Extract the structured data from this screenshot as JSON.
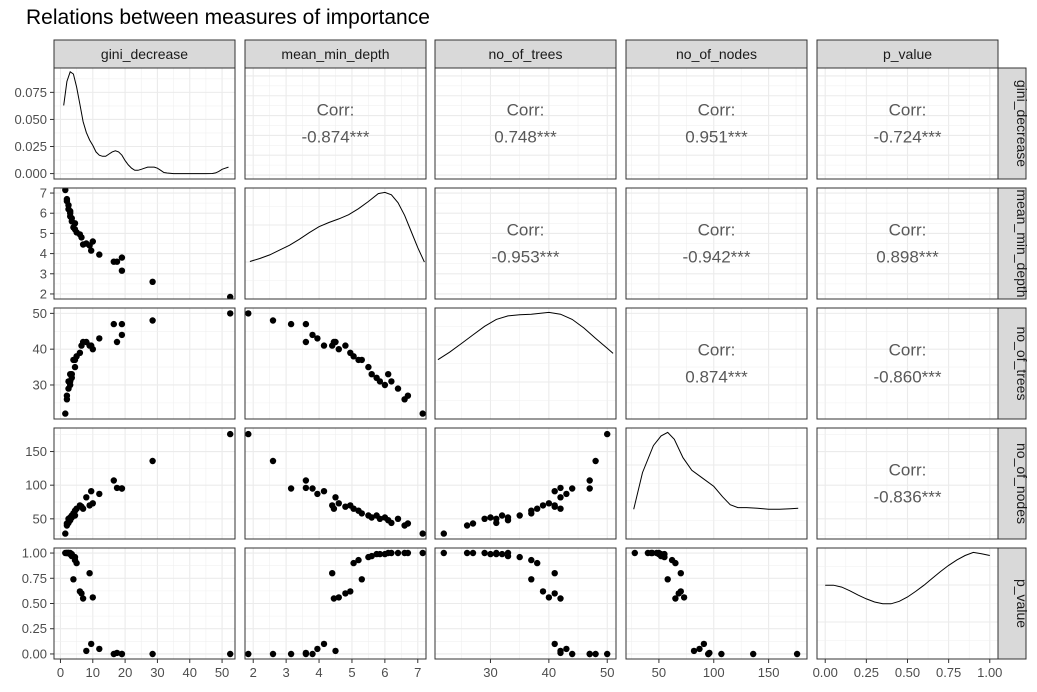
{
  "title": "Relations between measures of importance",
  "chart_data": {
    "type": "scatter",
    "title": "Relations between measures of importance",
    "variables": [
      "gini_decrease",
      "mean_min_depth",
      "no_of_trees",
      "no_of_nodes",
      "p_value"
    ],
    "axes": {
      "gini_decrease": {
        "range": [
          -2,
          54
        ],
        "ticks": [
          0,
          10,
          20,
          30,
          40,
          50
        ]
      },
      "mean_min_depth": {
        "range": [
          1.75,
          7.25
        ],
        "ticks": [
          2,
          3,
          4,
          5,
          6,
          7
        ]
      },
      "no_of_trees": {
        "range": [
          20.5,
          51.5
        ],
        "ticks": [
          30,
          40,
          50
        ]
      },
      "no_of_nodes": {
        "range": [
          20,
          185
        ],
        "ticks": [
          50,
          100,
          150
        ]
      },
      "p_value": {
        "range": [
          -0.05,
          1.05
        ],
        "ticks": [
          0.0,
          0.25,
          0.5,
          0.75,
          1.0
        ],
        "tick_labels": [
          "0.00",
          "0.25",
          "0.50",
          "0.75",
          "1.00"
        ]
      }
    },
    "density_axis": {
      "range": [
        -0.005,
        0.0975
      ],
      "ticks": [
        0.0,
        0.025,
        0.05,
        0.075
      ],
      "tick_labels": [
        "0.000",
        "0.025",
        "0.050",
        "0.075"
      ]
    },
    "density_curves": {
      "gini_decrease": [
        [
          1,
          0.063
        ],
        [
          2,
          0.085
        ],
        [
          3,
          0.094
        ],
        [
          4,
          0.092
        ],
        [
          5,
          0.08
        ],
        [
          6,
          0.064
        ],
        [
          7,
          0.048
        ],
        [
          8,
          0.038
        ],
        [
          9,
          0.031
        ],
        [
          10,
          0.026
        ],
        [
          11,
          0.02
        ],
        [
          12,
          0.017
        ],
        [
          13,
          0.016
        ],
        [
          14,
          0.016
        ],
        [
          15,
          0.018
        ],
        [
          16,
          0.02
        ],
        [
          17,
          0.021
        ],
        [
          18,
          0.02
        ],
        [
          19,
          0.017
        ],
        [
          20,
          0.012
        ],
        [
          21,
          0.008
        ],
        [
          22,
          0.005
        ],
        [
          23,
          0.003
        ],
        [
          24,
          0.003
        ],
        [
          25,
          0.004
        ],
        [
          26,
          0.005
        ],
        [
          27,
          0.006
        ],
        [
          28,
          0.006
        ],
        [
          29,
          0.006
        ],
        [
          30,
          0.005
        ],
        [
          31,
          0.003
        ],
        [
          32,
          0.001
        ],
        [
          33,
          0.0005
        ],
        [
          35,
          0.0
        ],
        [
          40,
          0.0
        ],
        [
          45,
          0.0
        ],
        [
          47,
          0.0001
        ],
        [
          48,
          0.0006
        ],
        [
          49,
          0.002
        ],
        [
          50,
          0.004
        ],
        [
          51,
          0.005
        ],
        [
          52,
          0.006
        ]
      ],
      "mean_min_depth": [
        [
          1.9,
          0.55
        ],
        [
          2.2,
          0.6
        ],
        [
          2.5,
          0.66
        ],
        [
          2.8,
          0.74
        ],
        [
          3.1,
          0.82
        ],
        [
          3.4,
          0.92
        ],
        [
          3.7,
          1.03
        ],
        [
          4.0,
          1.13
        ],
        [
          4.3,
          1.2
        ],
        [
          4.6,
          1.26
        ],
        [
          4.9,
          1.33
        ],
        [
          5.2,
          1.43
        ],
        [
          5.5,
          1.55
        ],
        [
          5.8,
          1.68
        ],
        [
          6.0,
          1.7
        ],
        [
          6.2,
          1.66
        ],
        [
          6.4,
          1.53
        ],
        [
          6.6,
          1.32
        ],
        [
          6.8,
          1.05
        ],
        [
          7.0,
          0.78
        ],
        [
          7.2,
          0.54
        ]
      ],
      "no_of_trees": [
        [
          21,
          0.95
        ],
        [
          23,
          1.08
        ],
        [
          25,
          1.23
        ],
        [
          27,
          1.38
        ],
        [
          29,
          1.53
        ],
        [
          31,
          1.65
        ],
        [
          33,
          1.71
        ],
        [
          35,
          1.73
        ],
        [
          37,
          1.74
        ],
        [
          39,
          1.76
        ],
        [
          40,
          1.77
        ],
        [
          42,
          1.74
        ],
        [
          44,
          1.65
        ],
        [
          46,
          1.5
        ],
        [
          48,
          1.32
        ],
        [
          50,
          1.15
        ],
        [
          51,
          1.06
        ]
      ],
      "no_of_nodes": [
        [
          27,
          0.44
        ],
        [
          35,
          1.08
        ],
        [
          45,
          1.55
        ],
        [
          52,
          1.72
        ],
        [
          58,
          1.78
        ],
        [
          64,
          1.66
        ],
        [
          72,
          1.34
        ],
        [
          80,
          1.12
        ],
        [
          90,
          0.98
        ],
        [
          100,
          0.84
        ],
        [
          108,
          0.66
        ],
        [
          115,
          0.52
        ],
        [
          122,
          0.47
        ],
        [
          130,
          0.47
        ],
        [
          140,
          0.46
        ],
        [
          150,
          0.44
        ],
        [
          160,
          0.44
        ],
        [
          170,
          0.45
        ],
        [
          177,
          0.46
        ]
      ],
      "p_value": [
        [
          0.0,
          1.12
        ],
        [
          0.05,
          1.12
        ],
        [
          0.1,
          1.09
        ],
        [
          0.15,
          1.03
        ],
        [
          0.2,
          0.96
        ],
        [
          0.25,
          0.9
        ],
        [
          0.3,
          0.85
        ],
        [
          0.35,
          0.82
        ],
        [
          0.4,
          0.82
        ],
        [
          0.45,
          0.86
        ],
        [
          0.5,
          0.93
        ],
        [
          0.55,
          1.02
        ],
        [
          0.6,
          1.12
        ],
        [
          0.65,
          1.23
        ],
        [
          0.7,
          1.34
        ],
        [
          0.75,
          1.44
        ],
        [
          0.8,
          1.53
        ],
        [
          0.85,
          1.6
        ],
        [
          0.9,
          1.65
        ],
        [
          0.95,
          1.63
        ],
        [
          1.0,
          1.6
        ]
      ]
    },
    "correlations": [
      {
        "x": "mean_min_depth",
        "y": "gini_decrease",
        "label": "Corr:",
        "value": "-0.874***"
      },
      {
        "x": "no_of_trees",
        "y": "gini_decrease",
        "label": "Corr:",
        "value": "0.748***"
      },
      {
        "x": "no_of_nodes",
        "y": "gini_decrease",
        "label": "Corr:",
        "value": "0.951***"
      },
      {
        "x": "p_value",
        "y": "gini_decrease",
        "label": "Corr:",
        "value": "-0.724***"
      },
      {
        "x": "no_of_trees",
        "y": "mean_min_depth",
        "label": "Corr:",
        "value": "-0.953***"
      },
      {
        "x": "no_of_nodes",
        "y": "mean_min_depth",
        "label": "Corr:",
        "value": "-0.942***"
      },
      {
        "x": "p_value",
        "y": "mean_min_depth",
        "label": "Corr:",
        "value": "0.898***"
      },
      {
        "x": "no_of_nodes",
        "y": "no_of_trees",
        "label": "Corr:",
        "value": "0.874***"
      },
      {
        "x": "p_value",
        "y": "no_of_trees",
        "label": "Corr:",
        "value": "-0.860***"
      },
      {
        "x": "p_value",
        "y": "no_of_nodes",
        "label": "Corr:",
        "value": "-0.836***"
      }
    ],
    "observations": [
      {
        "gini_decrease": 52.5,
        "mean_min_depth": 1.85,
        "no_of_trees": 50,
        "no_of_nodes": 176,
        "p_value": 0.0
      },
      {
        "gini_decrease": 28.5,
        "mean_min_depth": 2.6,
        "no_of_trees": 48,
        "no_of_nodes": 136,
        "p_value": 0.0
      },
      {
        "gini_decrease": 16.5,
        "mean_min_depth": 3.6,
        "no_of_trees": 47,
        "no_of_nodes": 107,
        "p_value": 0.0
      },
      {
        "gini_decrease": 19.0,
        "mean_min_depth": 3.15,
        "no_of_trees": 47,
        "no_of_nodes": 95,
        "p_value": 0.0
      },
      {
        "gini_decrease": 19.0,
        "mean_min_depth": 3.8,
        "no_of_trees": 44,
        "no_of_nodes": 95,
        "p_value": 0.0
      },
      {
        "gini_decrease": 17.5,
        "mean_min_depth": 3.6,
        "no_of_trees": 42,
        "no_of_nodes": 96,
        "p_value": 0.01
      },
      {
        "gini_decrease": 12.0,
        "mean_min_depth": 3.95,
        "no_of_trees": 43,
        "no_of_nodes": 87,
        "p_value": 0.05
      },
      {
        "gini_decrease": 9.5,
        "mean_min_depth": 4.15,
        "no_of_trees": 41,
        "no_of_nodes": 91,
        "p_value": 0.1
      },
      {
        "gini_decrease": 8.0,
        "mean_min_depth": 4.5,
        "no_of_trees": 42,
        "no_of_nodes": 82,
        "p_value": 0.03
      },
      {
        "gini_decrease": 10.0,
        "mean_min_depth": 4.6,
        "no_of_trees": 40,
        "no_of_nodes": 73,
        "p_value": 0.56
      },
      {
        "gini_decrease": 9.0,
        "mean_min_depth": 4.4,
        "no_of_trees": 41,
        "no_of_nodes": 70,
        "p_value": 0.8
      },
      {
        "gini_decrease": 7.0,
        "mean_min_depth": 4.45,
        "no_of_trees": 42,
        "no_of_nodes": 65,
        "p_value": 0.55
      },
      {
        "gini_decrease": 6.5,
        "mean_min_depth": 4.8,
        "no_of_trees": 41,
        "no_of_nodes": 68,
        "p_value": 0.6
      },
      {
        "gini_decrease": 6.0,
        "mean_min_depth": 4.95,
        "no_of_trees": 39,
        "no_of_nodes": 70,
        "p_value": 0.62
      },
      {
        "gini_decrease": 5.0,
        "mean_min_depth": 5.05,
        "no_of_trees": 38,
        "no_of_nodes": 65,
        "p_value": 0.9
      },
      {
        "gini_decrease": 4.5,
        "mean_min_depth": 5.2,
        "no_of_trees": 37,
        "no_of_nodes": 62,
        "p_value": 0.93
      },
      {
        "gini_decrease": 4.0,
        "mean_min_depth": 5.3,
        "no_of_trees": 37,
        "no_of_nodes": 58,
        "p_value": 0.74
      },
      {
        "gini_decrease": 4.5,
        "mean_min_depth": 5.5,
        "no_of_trees": 35,
        "no_of_nodes": 55,
        "p_value": 0.96
      },
      {
        "gini_decrease": 3.5,
        "mean_min_depth": 5.6,
        "no_of_trees": 33,
        "no_of_nodes": 52,
        "p_value": 0.97
      },
      {
        "gini_decrease": 3.5,
        "mean_min_depth": 5.75,
        "no_of_trees": 32,
        "no_of_nodes": 55,
        "p_value": 0.99
      },
      {
        "gini_decrease": 3.0,
        "mean_min_depth": 5.85,
        "no_of_trees": 31,
        "no_of_nodes": 50,
        "p_value": 0.99
      },
      {
        "gini_decrease": 3.0,
        "mean_min_depth": 6.0,
        "no_of_trees": 30,
        "no_of_nodes": 52,
        "p_value": 0.99
      },
      {
        "gini_decrease": 3.0,
        "mean_min_depth": 6.1,
        "no_of_trees": 33,
        "no_of_nodes": 48,
        "p_value": 1.0
      },
      {
        "gini_decrease": 2.5,
        "mean_min_depth": 6.2,
        "no_of_trees": 31,
        "no_of_nodes": 44,
        "p_value": 1.0
      },
      {
        "gini_decrease": 2.5,
        "mean_min_depth": 6.4,
        "no_of_trees": 29,
        "no_of_nodes": 50,
        "p_value": 1.0
      },
      {
        "gini_decrease": 2.0,
        "mean_min_depth": 6.6,
        "no_of_trees": 26,
        "no_of_nodes": 40,
        "p_value": 1.0
      },
      {
        "gini_decrease": 2.0,
        "mean_min_depth": 6.7,
        "no_of_trees": 27,
        "no_of_nodes": 43,
        "p_value": 1.0
      },
      {
        "gini_decrease": 1.5,
        "mean_min_depth": 7.15,
        "no_of_trees": 22,
        "no_of_nodes": 28,
        "p_value": 1.0
      }
    ]
  }
}
